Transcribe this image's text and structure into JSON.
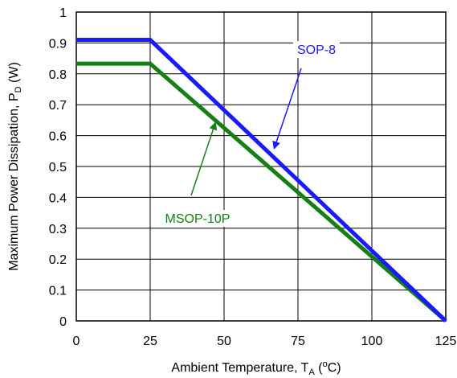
{
  "chart_data": {
    "type": "line",
    "xlabel": {
      "main": "Ambient Temperature, T",
      "sub": "A",
      "pre_sup": " (",
      "sup": "o",
      "post": "C)"
    },
    "ylabel": {
      "main": "Maximum Power Dissipation, P",
      "sub": "D",
      "post": " (W)"
    },
    "xlim": [
      0,
      125
    ],
    "ylim": [
      0,
      1
    ],
    "x_ticks": [
      0,
      25,
      50,
      75,
      100,
      125
    ],
    "x_tick_labels": [
      "0",
      "25",
      "50",
      "75",
      "100",
      "125"
    ],
    "y_ticks": [
      0,
      0.1,
      0.2,
      0.3,
      0.4,
      0.5,
      0.6,
      0.7,
      0.8,
      0.9,
      1
    ],
    "y_tick_labels": [
      "0",
      "0.1",
      "0.2",
      "0.3",
      "0.4",
      "0.5",
      "0.6",
      "0.7",
      "0.8",
      "0.9",
      "1"
    ],
    "grid": true,
    "series": [
      {
        "name": "SOP-8",
        "color": "#1a1aff",
        "x": [
          0,
          25,
          125
        ],
        "y": [
          0.91,
          0.91,
          0
        ]
      },
      {
        "name": "MSOP-10P",
        "color": "#148014",
        "x": [
          0,
          25,
          125
        ],
        "y": [
          0.833,
          0.833,
          0
        ]
      }
    ],
    "annotations": [
      {
        "text": "SOP-8",
        "color": "#1a1aff",
        "points_to_x": 67,
        "points_to_y": 0.56
      },
      {
        "text": "MSOP-10P",
        "color": "#148014",
        "points_to_x": 47,
        "points_to_y": 0.64
      }
    ]
  }
}
